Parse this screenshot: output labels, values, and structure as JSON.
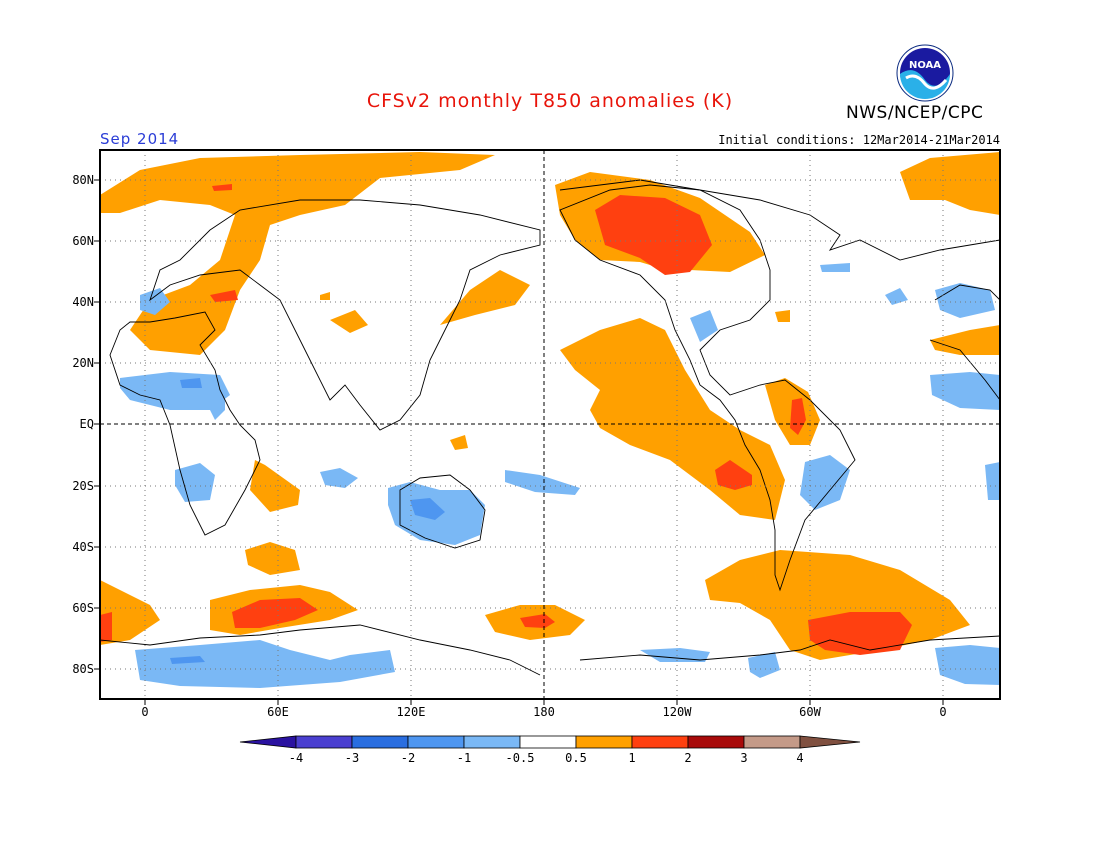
{
  "title": "CFSv2 monthly T850 anomalies (K)",
  "organization": "NWS/NCEP/CPC",
  "logo_text": "NOAA",
  "valid_month": "Sep 2014",
  "initial_conditions": "Initial conditions: 12Mar2014-21Mar2014",
  "lat_labels": [
    "80N",
    "60N",
    "40N",
    "20N",
    "EQ",
    "20S",
    "40S",
    "60S",
    "80S"
  ],
  "lon_labels": [
    "0",
    "60E",
    "120E",
    "180",
    "120W",
    "60W",
    "0"
  ],
  "colorbar": {
    "labels": [
      "-4",
      "-3",
      "-2",
      "-1",
      "-0.5",
      "0.5",
      "1",
      "2",
      "3",
      "4"
    ],
    "colors": [
      "#2a12a0",
      "#4a3fd0",
      "#2a6ee0",
      "#4e96f0",
      "#7ab8f5",
      "#ffffff",
      "#ffa000",
      "#ff4010",
      "#a80a0a",
      "#c49a88",
      "#805040"
    ]
  },
  "icons": [
    "noaa-logo-icon"
  ]
}
